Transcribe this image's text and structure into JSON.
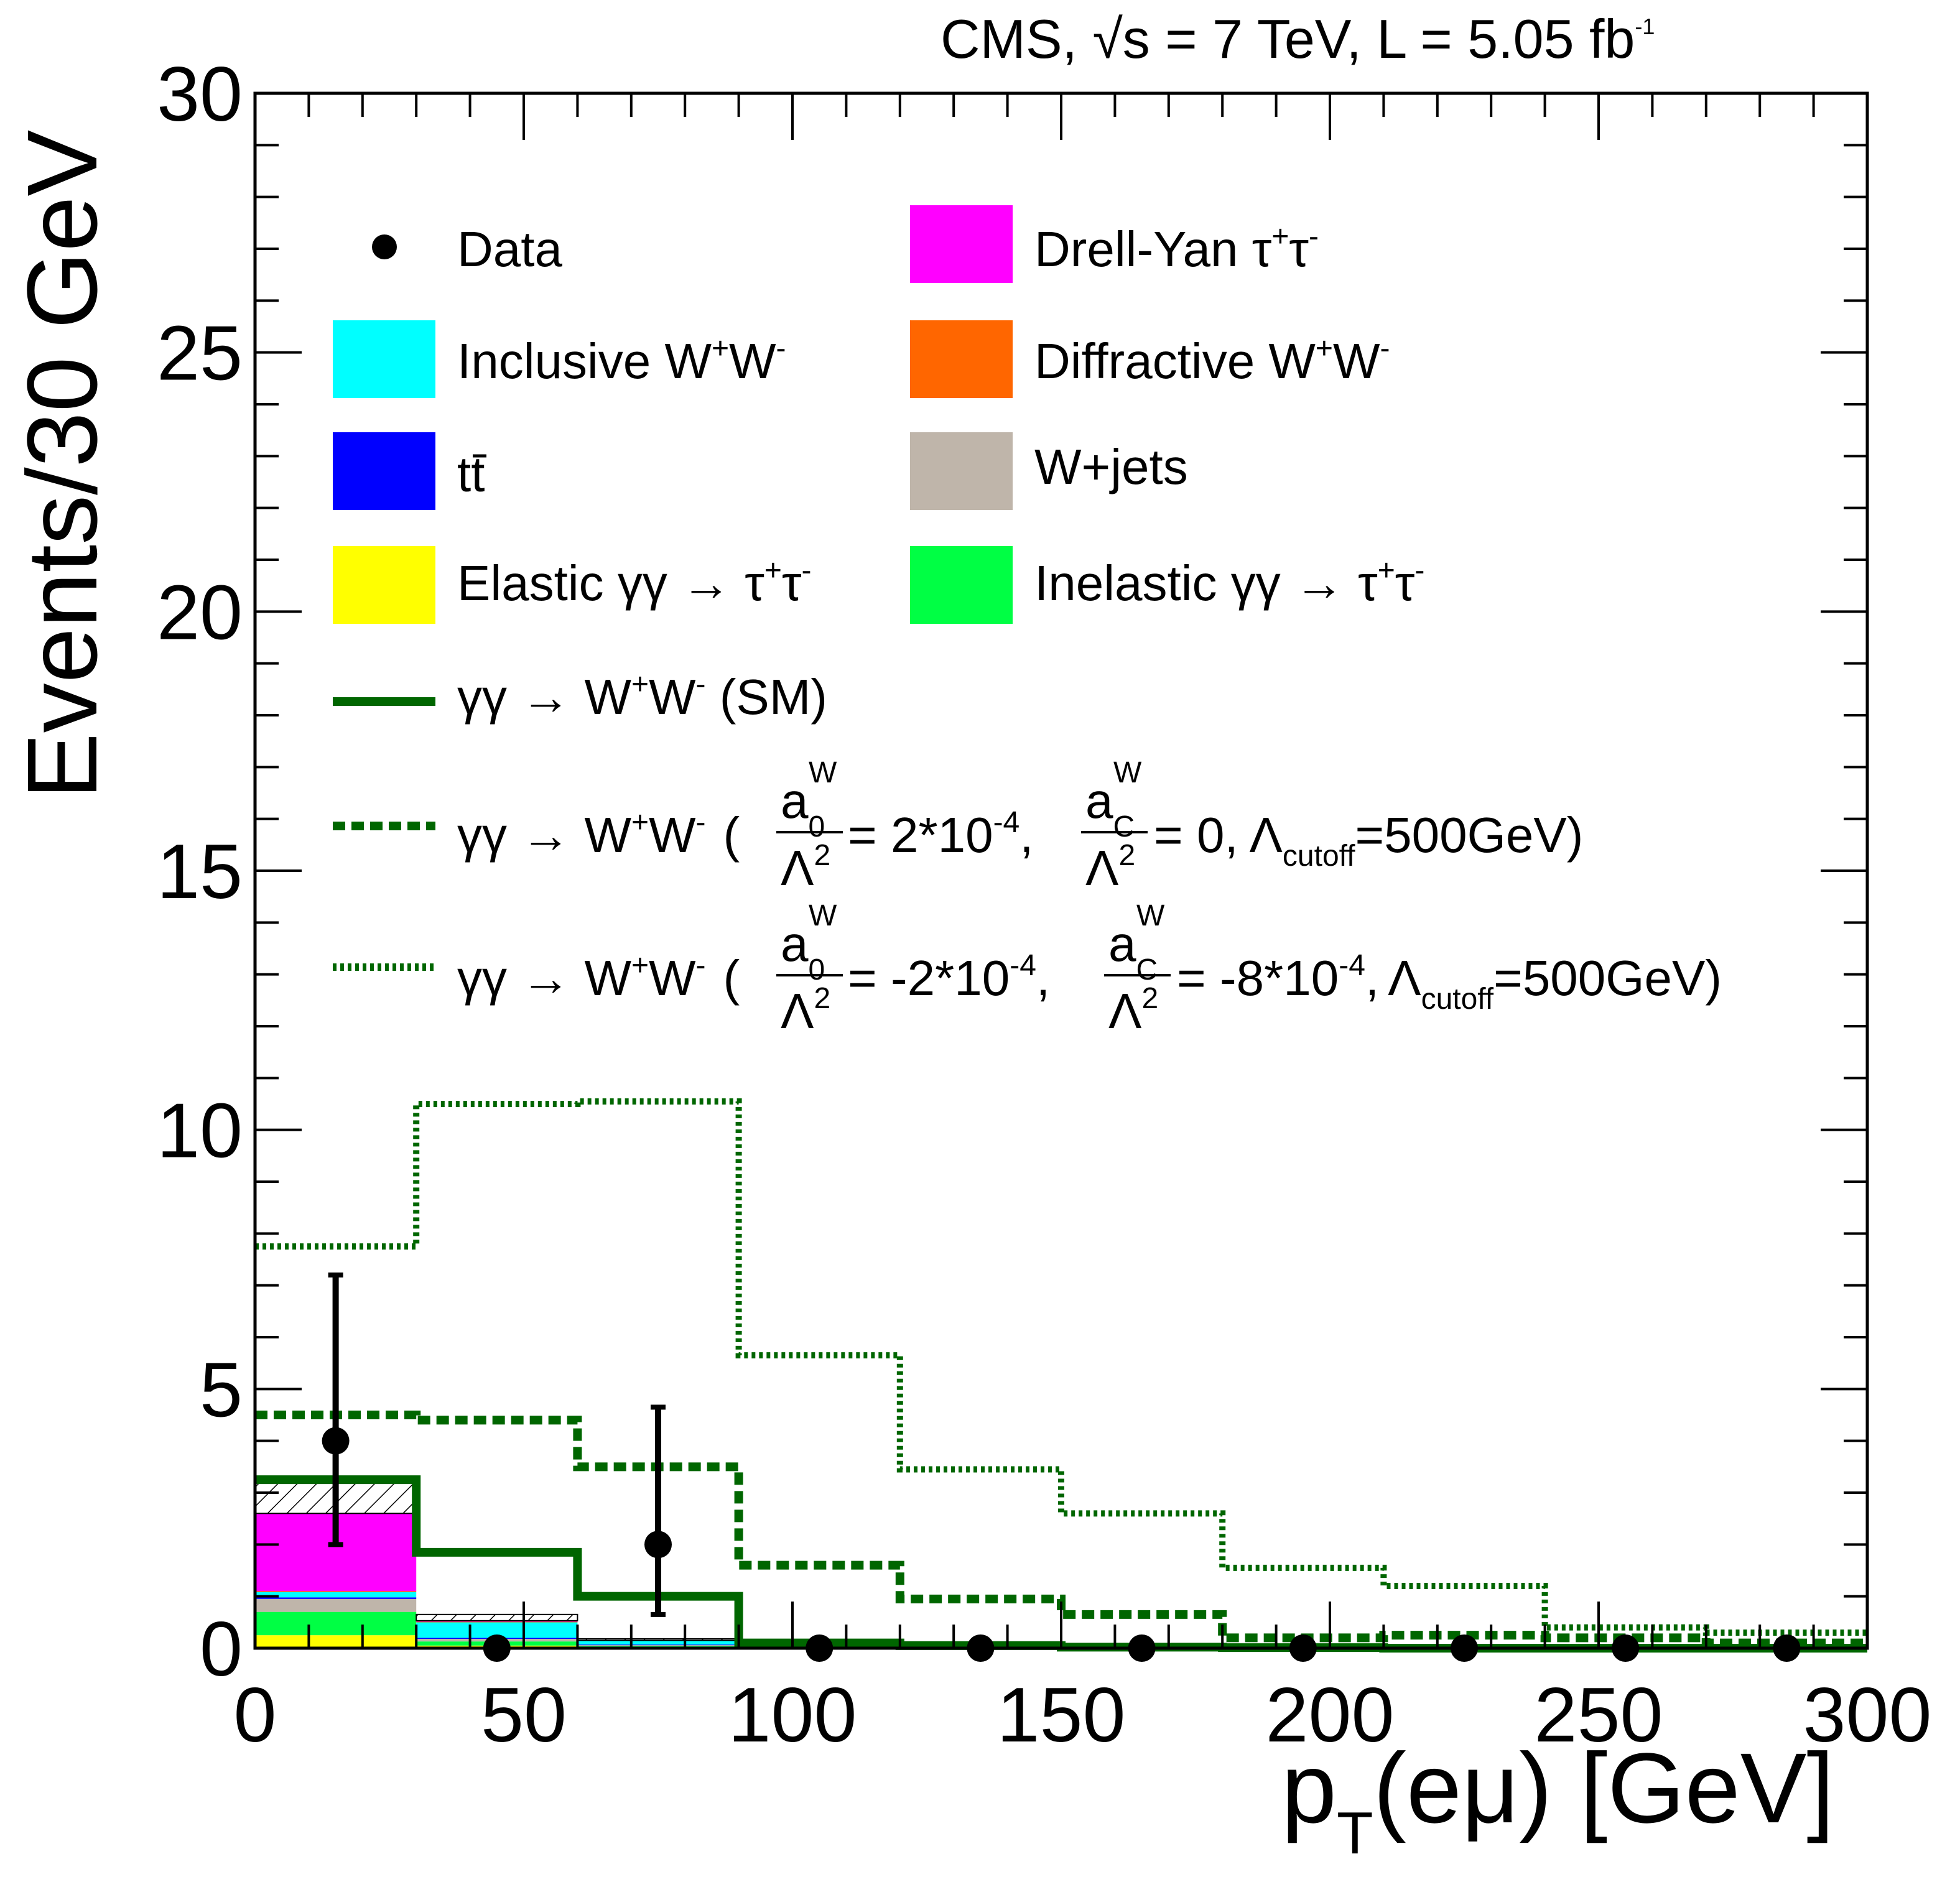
{
  "chart_data": {
    "type": "histogram",
    "header": "CMS, √s = 7 TeV, L = 5.05 fb",
    "header_sup": "-1",
    "xlabel_main": "p",
    "xlabel_sub": "T",
    "xlabel_rest": "(eμ) [GeV]",
    "ylabel": "Events/30 GeV",
    "xlim": [
      0,
      300
    ],
    "ylim": [
      0,
      30
    ],
    "x_ticks": [
      0,
      50,
      100,
      150,
      200,
      250,
      300
    ],
    "y_ticks": [
      0,
      5,
      10,
      15,
      20,
      25,
      30
    ],
    "x_tick_labels": [
      "0",
      "50",
      "100",
      "150",
      "200",
      "250",
      "300"
    ],
    "y_tick_labels": [
      "0",
      "5",
      "10",
      "15",
      "20",
      "25",
      "30"
    ],
    "bin_edges": [
      0,
      30,
      60,
      90,
      120,
      150,
      180,
      210,
      240,
      270,
      300
    ],
    "data": {
      "name": "Data",
      "x": [
        15,
        45,
        75,
        105,
        135,
        165,
        195,
        225,
        255,
        285
      ],
      "y": [
        4,
        0,
        2,
        0,
        0,
        0,
        0,
        0,
        0,
        0
      ],
      "err_low": [
        2.0,
        0,
        1.35,
        0,
        0,
        0,
        0,
        0,
        0,
        0
      ],
      "err_high": [
        3.2,
        0,
        2.65,
        0,
        0,
        0,
        0,
        0,
        0,
        0
      ]
    },
    "stack": [
      {
        "name": "Elastic γγ → τ⁺τ⁻",
        "color": "#ffff00",
        "values": [
          0.25,
          0.05,
          0.02,
          0,
          0,
          0,
          0,
          0,
          0,
          0
        ]
      },
      {
        "name": "Inelastic γγ → τ⁺τ⁻",
        "color": "#00ff44",
        "values": [
          0.45,
          0.08,
          0.02,
          0,
          0,
          0,
          0,
          0,
          0,
          0
        ]
      },
      {
        "name": "W+jets",
        "color": "#bfb5aa",
        "values": [
          0.25,
          0.05,
          0.02,
          0,
          0,
          0,
          0,
          0,
          0,
          0
        ]
      },
      {
        "name": "t̅t",
        "color": "#0000ff",
        "values": [
          0.03,
          0.02,
          0.01,
          0,
          0,
          0,
          0,
          0,
          0,
          0
        ]
      },
      {
        "name": "Inclusive W⁺W⁻",
        "color": "#00ffff",
        "values": [
          0.1,
          0.3,
          0.08,
          0.02,
          0,
          0,
          0,
          0,
          0,
          0
        ]
      },
      {
        "name": "Diffractive W⁺W⁻",
        "color": "#ff6600",
        "values": [
          0.02,
          0.01,
          0,
          0,
          0,
          0,
          0,
          0,
          0,
          0
        ]
      },
      {
        "name": "Drell-Yan τ⁺τ⁻",
        "color": "#ff00ff",
        "values": [
          1.5,
          0.02,
          0,
          0,
          0,
          0,
          0,
          0,
          0,
          0
        ]
      }
    ],
    "hatch_top": [
      3.2,
      0.65,
      0.18,
      0.04,
      0,
      0,
      0,
      0,
      0,
      0
    ],
    "lines": [
      {
        "name": "γγ → W⁺W⁻ (SM)",
        "style": "solid",
        "color": "#006600",
        "values": [
          3.25,
          1.85,
          1.0,
          0.1,
          0.05,
          0.02,
          0.01,
          0.0,
          0.0,
          0.0
        ]
      },
      {
        "name": "γγ → W⁺W⁻ (a0W/Λ² = 2*10⁻⁴, aCW/Λ² = 0, Λcutoff=500GeV)",
        "style": "dashed",
        "color": "#006600",
        "values": [
          4.5,
          4.4,
          3.5,
          1.6,
          0.95,
          0.65,
          0.2,
          0.25,
          0.2,
          0.1
        ]
      },
      {
        "name": "γγ → W⁺W⁻ (a0W/Λ² = -2*10⁻⁴, aCW/Λ² = -8*10⁻⁴, Λcutoff=500GeV)",
        "style": "dotted",
        "color": "#006600",
        "values": [
          7.75,
          10.5,
          10.55,
          5.65,
          3.45,
          2.6,
          1.55,
          1.2,
          0.4,
          0.3
        ]
      }
    ]
  },
  "legend": {
    "data": "Data",
    "inclusive_ww": "Inclusive W",
    "ttbar": "tt",
    "elastic": "Elastic γγ → τ",
    "drell_yan": "Drell-Yan τ",
    "diffractive_ww": "Diffractive W",
    "wjets": "W+jets",
    "inelastic": "Inelastic γγ → τ",
    "sm": "γγ → W",
    "sm_suffix": " (SM)",
    "aqgc_prefix": "γγ → W",
    "aqgc1_val1": " = 2*10",
    "aqgc1_val2": " = 0, ",
    "aqgc2_val1": " = -2*10",
    "aqgc2_val2": " = -8*10",
    "exp": "-4",
    "a": "a",
    "sub0": "0",
    "subC": "C",
    "supW": "W",
    "lambda2": "Λ",
    "two": "2",
    "lambda": "Λ",
    "cutoff": "cutoff",
    "cutoff_val": "=500GeV)",
    "open_paren": "(",
    "comma": ",",
    "plus": "+",
    "minus": "-",
    "w": "W"
  },
  "colors": {
    "inclusive_ww": "#00ffff",
    "ttbar": "#0000ff",
    "elastic": "#ffff00",
    "drell_yan": "#ff00ff",
    "diffractive_ww": "#ff6600",
    "wjets": "#bfb5aa",
    "inelastic": "#00ff44",
    "sm_line": "#006600"
  }
}
